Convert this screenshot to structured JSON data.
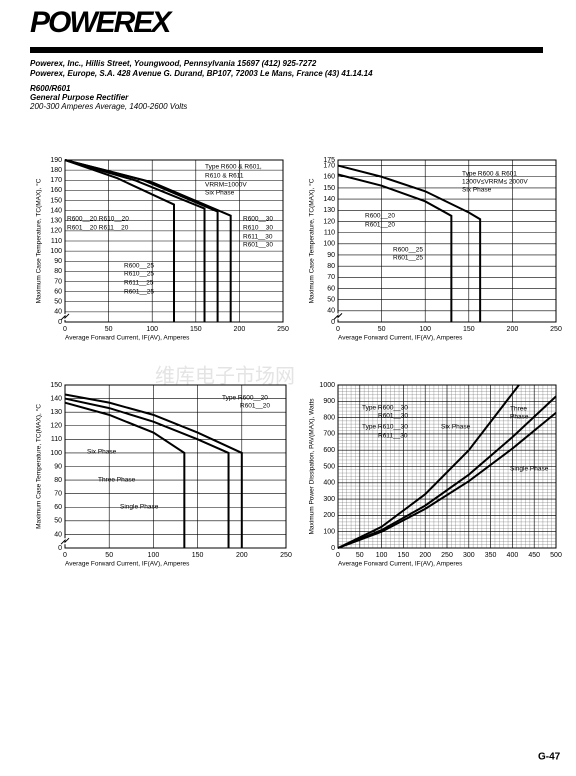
{
  "header": {
    "logo": "POWEREX",
    "address1": "Powerex, Inc., Hillis Street, Youngwood, Pennsylvania 15697 (412) 925-7272",
    "address2": "Powerex, Europe, S.A. 428 Avenue G. Durand, BP107, 72003 Le Mans, France (43) 41.14.14",
    "part": "R600/R601",
    "subtitle": "General Purpose Rectifier",
    "rating": "200-300 Amperes Average, 1400-2600 Volts"
  },
  "watermark": "维库电子市场网",
  "chart_data": [
    {
      "type": "line",
      "xlabel": "Average Forward Current, IF(AV), Amperes",
      "ylabel": "Maximum Case Temperature, TC(MAX), °C",
      "xlim": [
        0,
        250
      ],
      "xticks": [
        0,
        50,
        100,
        150,
        200,
        250
      ],
      "ylim": [
        0,
        190
      ],
      "yticks": [
        0,
        40,
        50,
        60,
        70,
        80,
        90,
        100,
        110,
        120,
        130,
        140,
        150,
        160,
        170,
        180,
        190
      ],
      "axis_break": [
        0,
        40
      ],
      "grid": true,
      "series": [
        {
          "color": "#000000",
          "x": [
            0,
            60,
            125,
            125
          ],
          "values": [
            190,
            172,
            146,
            0
          ]
        },
        {
          "color": "#000000",
          "x": [
            0,
            80,
            160,
            160
          ],
          "values": [
            190,
            170,
            142,
            0
          ]
        },
        {
          "color": "#000000",
          "x": [
            0,
            90,
            175,
            175
          ],
          "values": [
            190,
            170,
            139,
            0
          ]
        },
        {
          "color": "#000000",
          "x": [
            0,
            100,
            190,
            190
          ],
          "values": [
            190,
            168,
            135,
            0
          ]
        }
      ],
      "annotations": [
        "Type R600 & R601,",
        "R610 & R611",
        "VRRM=1000V",
        "Six Phase",
        "R600__20  R610__20",
        "R601__20  R611__20",
        "R600__30",
        "R610__30",
        "R611__30",
        "R601__30",
        "R600__25",
        "R610__25",
        "R611__25",
        "R601__25"
      ]
    },
    {
      "type": "line",
      "xlabel": "Average Forward Current, IF(AV), Amperes",
      "ylabel": "Maximum Case Temperature, TC(MAX), °C",
      "xlim": [
        0,
        250
      ],
      "xticks": [
        0,
        50,
        100,
        150,
        200,
        250
      ],
      "ylim": [
        0,
        175
      ],
      "yticks": [
        0,
        40,
        50,
        60,
        70,
        80,
        90,
        100,
        110,
        120,
        130,
        140,
        150,
        160,
        170,
        175
      ],
      "axis_break": [
        0,
        40
      ],
      "grid": true,
      "series": [
        {
          "color": "#000000",
          "x": [
            0,
            50,
            100,
            150,
            163,
            163
          ],
          "values": [
            170,
            160,
            147,
            128,
            122,
            0
          ]
        },
        {
          "color": "#000000",
          "x": [
            0,
            50,
            100,
            130,
            130
          ],
          "values": [
            162,
            152,
            138,
            125,
            0
          ]
        }
      ],
      "annotations": [
        "Type R600 & R601",
        "1200V≤VRRM≤ 2000V",
        "Six Phase",
        "R600__20",
        "R601__20",
        "R600__25",
        "R601__25"
      ]
    },
    {
      "type": "line",
      "xlabel": "Average Forward Current, IF(AV), Amperes",
      "ylabel": "Maximum Case Temperature, TC(MAX), °C",
      "xlim": [
        0,
        250
      ],
      "xticks": [
        0,
        50,
        100,
        150,
        200,
        250
      ],
      "ylim": [
        0,
        150
      ],
      "yticks": [
        0,
        40,
        50,
        60,
        70,
        80,
        90,
        100,
        110,
        120,
        130,
        140,
        150
      ],
      "axis_break": [
        0,
        40
      ],
      "grid": true,
      "series": [
        {
          "color": "#000000",
          "x": [
            0,
            50,
            100,
            150,
            200,
            200
          ],
          "values": [
            143,
            137,
            128,
            115,
            100,
            0
          ]
        },
        {
          "color": "#000000",
          "x": [
            0,
            50,
            100,
            150,
            185,
            185
          ],
          "values": [
            140,
            133,
            123,
            110,
            100,
            0
          ]
        },
        {
          "color": "#000000",
          "x": [
            0,
            50,
            100,
            135,
            135
          ],
          "values": [
            137,
            128,
            115,
            100,
            0
          ]
        }
      ],
      "annotations": [
        "Type R600__20",
        "R601__20",
        "Six Phase",
        "Three Phase",
        "Single Phase"
      ]
    },
    {
      "type": "line",
      "xlabel": "Average Forward Current, IF(AV), Amperes",
      "ylabel": "Maximum Power Dissipation, PAV(MAX), Watts",
      "xlim": [
        0,
        500
      ],
      "xticks": [
        0,
        50,
        100,
        150,
        200,
        250,
        300,
        350,
        400,
        450,
        500
      ],
      "ylim": [
        0,
        1000
      ],
      "yticks": [
        0,
        100,
        200,
        300,
        400,
        500,
        600,
        700,
        800,
        900,
        1000
      ],
      "grid": true,
      "minor_grid": true,
      "series": [
        {
          "color": "#000000",
          "x": [
            0,
            100,
            200,
            300,
            415
          ],
          "values": [
            0,
            130,
            330,
            600,
            1000
          ]
        },
        {
          "color": "#000000",
          "x": [
            0,
            100,
            200,
            300,
            400,
            500
          ],
          "values": [
            0,
            110,
            260,
            450,
            680,
            930
          ]
        },
        {
          "color": "#000000",
          "x": [
            0,
            100,
            200,
            300,
            400,
            500
          ],
          "values": [
            0,
            100,
            240,
            410,
            610,
            830
          ]
        }
      ],
      "annotations": [
        "Type R600__30",
        "R601__30",
        "Type R610__30",
        "R611__30",
        "Six Phase",
        "Three",
        "Phase",
        "Single Phase"
      ]
    }
  ],
  "footer": {
    "page": "G-47"
  }
}
